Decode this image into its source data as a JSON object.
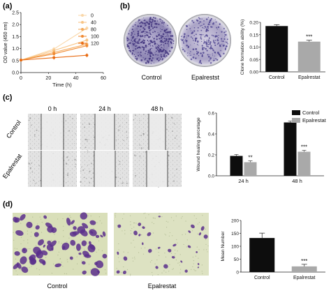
{
  "panels": {
    "a": {
      "label": "(a)"
    },
    "b": {
      "label": "(b)",
      "image_labels": [
        "Control",
        "Epalrestst"
      ]
    },
    "c": {
      "label": "(c)",
      "time_labels": [
        "0 h",
        "24 h",
        "48 h"
      ],
      "row_labels": [
        "Control",
        "Epalrestat"
      ]
    },
    "d": {
      "label": "(d)",
      "image_labels": [
        "Control",
        "Epalrestat"
      ]
    }
  },
  "chart_data": [
    {
      "id": "a",
      "type": "line",
      "xlabel": "Time (h)",
      "ylabel": "OD value (450 nm)",
      "xlim": [
        0,
        60
      ],
      "ylim": [
        0,
        2.5
      ],
      "xticks": [
        0,
        20,
        40,
        60
      ],
      "yticks": [
        0.0,
        0.5,
        1.0,
        1.5,
        2.0,
        2.5
      ],
      "yticklabels": [
        "0.0",
        "0.5",
        "1.0",
        "1.5",
        "2.0",
        "2.5"
      ],
      "x": [
        0,
        24,
        48
      ],
      "series": [
        {
          "name": "0",
          "color": "#fad7a8",
          "values": [
            0.52,
            0.98,
            1.85
          ]
        },
        {
          "name": "40",
          "color": "#f8c484",
          "values": [
            0.52,
            0.92,
            1.35
          ]
        },
        {
          "name": "80",
          "color": "#f4a95a",
          "values": [
            0.52,
            0.84,
            1.18
          ]
        },
        {
          "name": "100",
          "color": "#f08a32",
          "values": [
            0.52,
            0.78,
            1.12
          ]
        },
        {
          "name": "120",
          "color": "#e96b12",
          "values": [
            0.52,
            0.62,
            0.72
          ]
        }
      ],
      "legend": "top-left"
    },
    {
      "id": "b",
      "type": "bar",
      "ylabel": "Clone formation ability (%)",
      "ylim": [
        0,
        0.2
      ],
      "yticks": [
        0.0,
        0.05,
        0.1,
        0.15,
        0.2
      ],
      "yticklabels": [
        "0.00",
        "0.05",
        "0.10",
        "0.15",
        "0.20"
      ],
      "categories": [
        "Control",
        "Epalrestat"
      ],
      "values": [
        0.185,
        0.122
      ],
      "colors": [
        "#0d0d0d",
        "#a9a9a9"
      ],
      "significance": [
        "",
        "***"
      ]
    },
    {
      "id": "c",
      "type": "bar",
      "ylabel": "Wound healing percetage",
      "ylim": [
        0,
        0.6
      ],
      "yticks": [
        0.0,
        0.2,
        0.4,
        0.6
      ],
      "yticklabels": [
        "0.0",
        "0.2",
        "0.4",
        "0.6"
      ],
      "categories": [
        "24 h",
        "48 h"
      ],
      "series": [
        {
          "name": "Control",
          "color": "#0d0d0d",
          "values": [
            0.19,
            0.51
          ]
        },
        {
          "name": "Epalrestat",
          "color": "#a9a9a9",
          "values": [
            0.13,
            0.23
          ]
        }
      ],
      "significance": [
        "**",
        "***"
      ],
      "legend": "top-right"
    },
    {
      "id": "d",
      "type": "bar",
      "ylabel": "Mean Number",
      "ylim": [
        0,
        200
      ],
      "yticks": [
        0,
        50,
        100,
        150,
        200
      ],
      "yticklabels": [
        "0",
        "50",
        "100",
        "150",
        "200"
      ],
      "categories": [
        "Control",
        "Epalrestat"
      ],
      "values": [
        132,
        22
      ],
      "colors": [
        "#0d0d0d",
        "#a9a9a9"
      ],
      "significance": [
        "",
        "***"
      ]
    }
  ]
}
